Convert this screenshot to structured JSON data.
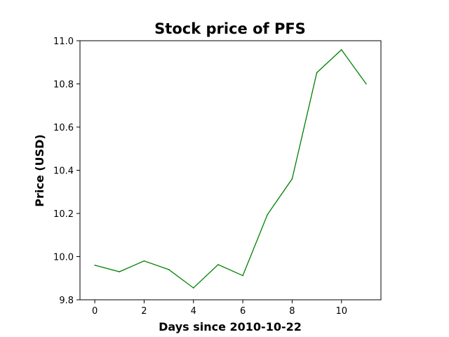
{
  "chart_data": {
    "type": "line",
    "title": "Stock price of PFS",
    "xlabel": "Days since 2010-10-22",
    "ylabel": "Price (USD)",
    "xlim": [
      -0.6,
      11.6
    ],
    "ylim": [
      9.8,
      11.0
    ],
    "xticks": [
      0,
      2,
      4,
      6,
      8,
      10
    ],
    "yticks": [
      "9.8",
      "10.0",
      "10.2",
      "10.4",
      "10.6",
      "10.8",
      "11.0"
    ],
    "series": [
      {
        "name": "PFS",
        "color": "#008000",
        "x": [
          0,
          1,
          2,
          3,
          4,
          5,
          6,
          7,
          8,
          9,
          10,
          11
        ],
        "values": [
          9.96,
          9.93,
          9.98,
          9.94,
          9.855,
          9.963,
          9.912,
          10.195,
          10.36,
          10.852,
          10.958,
          10.8
        ]
      }
    ],
    "grid": false,
    "legend": "none"
  }
}
